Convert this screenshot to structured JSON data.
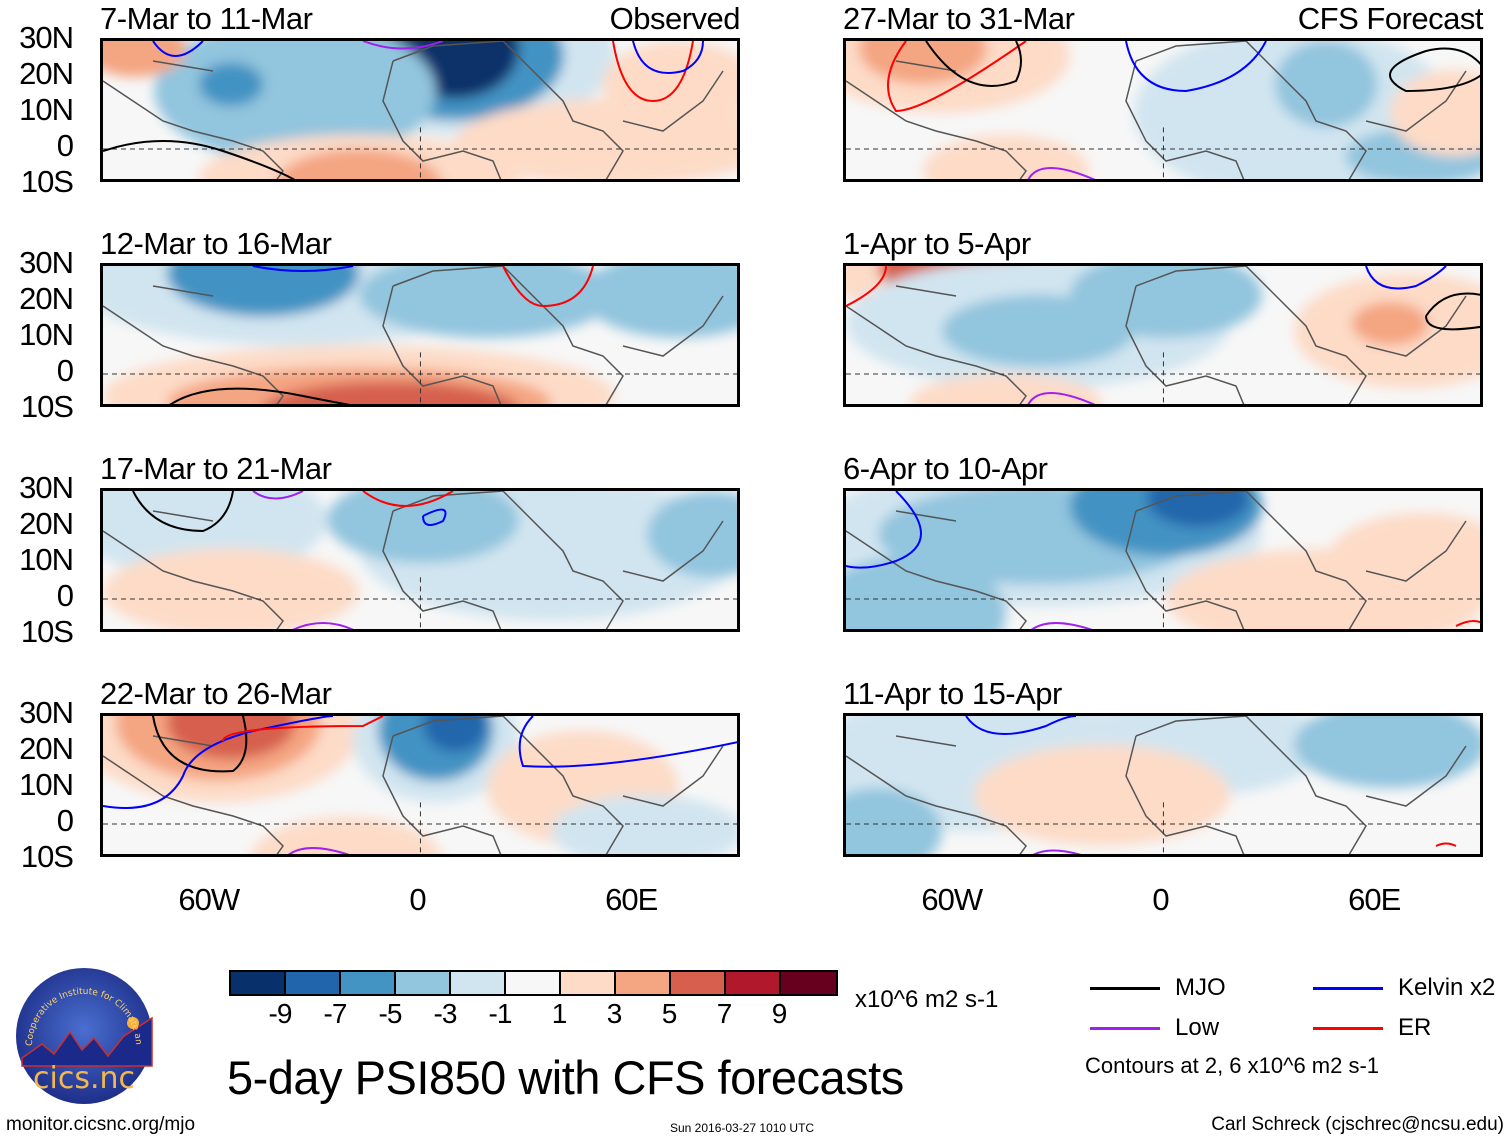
{
  "main_title": "5-day PSI850 with CFS forecasts",
  "observed_label": "Observed",
  "forecast_label": "CFS Forecast",
  "lat_labels": [
    "30N",
    "20N",
    "10N",
    "0",
    "10S"
  ],
  "lon_labels": [
    "60W",
    "0",
    "60E"
  ],
  "panels": [
    {
      "title": "7-Mar to 11-Mar",
      "type": "observed"
    },
    {
      "title": "12-Mar to 16-Mar",
      "type": "observed"
    },
    {
      "title": "17-Mar to 21-Mar",
      "type": "observed"
    },
    {
      "title": "22-Mar to 26-Mar",
      "type": "observed"
    },
    {
      "title": "27-Mar to 31-Mar",
      "type": "forecast"
    },
    {
      "title": "1-Apr to 5-Apr",
      "type": "forecast"
    },
    {
      "title": "6-Apr to 10-Apr",
      "type": "forecast"
    },
    {
      "title": "11-Apr to 15-Apr",
      "type": "forecast"
    }
  ],
  "colorbar": {
    "colors": [
      "#08306b",
      "#2166ac",
      "#4393c3",
      "#92c5de",
      "#d1e5f0",
      "#f7f7f7",
      "#fddbc7",
      "#f4a582",
      "#d6604d",
      "#b2182b",
      "#67001f"
    ],
    "ticks": [
      "-9",
      "-7",
      "-5",
      "-3",
      "-1",
      "1",
      "3",
      "5",
      "7",
      "9"
    ],
    "units": "x10^6 m2 s-1"
  },
  "legend": {
    "items": [
      {
        "label": "MJO",
        "color": "#000000"
      },
      {
        "label": "Kelvin x2",
        "color": "#0000ff"
      },
      {
        "label": "Low",
        "color": "#a020f0"
      },
      {
        "label": "ER",
        "color": "#ff0000"
      }
    ],
    "contour_note": "Contours at 2, 6 x10^6 m2 s-1"
  },
  "logo": {
    "text": "cics.nc",
    "arc_text": "Cooperative Institute for Climate and Satellites"
  },
  "footer": {
    "url": "monitor.cicsnc.org/mjo",
    "timestamp": "Sun 2016-03-27 1010 UTC",
    "author": "Carl Schreck (cjschrec@ncsu.edu)"
  }
}
